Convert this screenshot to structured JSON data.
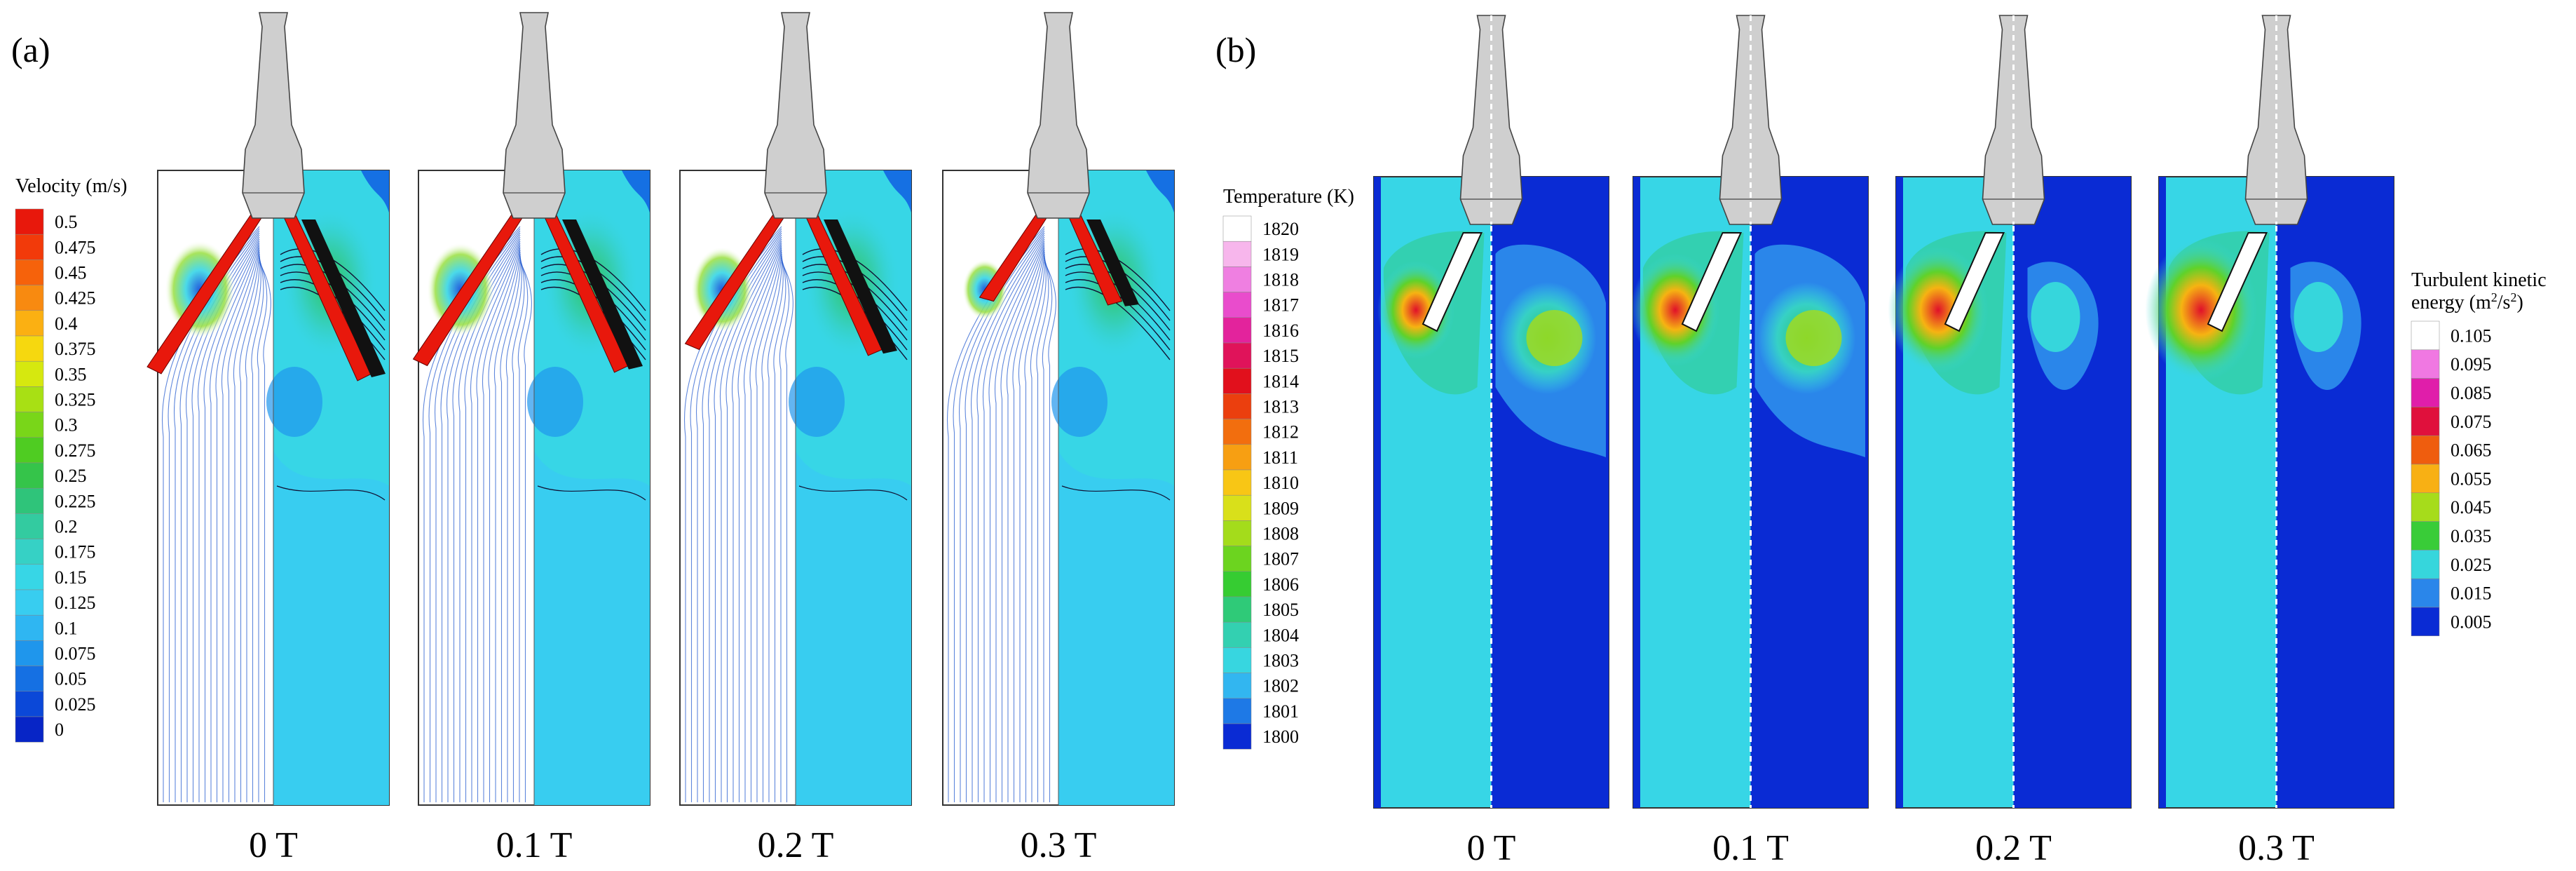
{
  "panels": [
    {
      "label": "(a)",
      "legend_title": "Velocity (m/s)",
      "legend_ticks": [
        "0.5",
        "0.475",
        "0.45",
        "0.425",
        "0.4",
        "0.375",
        "0.35",
        "0.325",
        "0.3",
        "0.275",
        "0.25",
        "0.225",
        "0.2",
        "0.175",
        "0.15",
        "0.125",
        "0.1",
        "0.075",
        "0.05",
        "0.025",
        "0"
      ],
      "legend_colors": [
        "#e8180c",
        "#f23a0a",
        "#f6620b",
        "#f88a10",
        "#fbb012",
        "#f6d80f",
        "#d6e80f",
        "#a8e014",
        "#79d619",
        "#4fcc22",
        "#35c44a",
        "#2fc47a",
        "#33cba0",
        "#36d1c5",
        "#37d6e6",
        "#38cdf0",
        "#2fb6f2",
        "#1f96ec",
        "#1570e3",
        "#0b48d8",
        "#0725c6"
      ],
      "cases": [
        "0 T",
        "0.1 T",
        "0.2 T",
        "0.3 T"
      ]
    },
    {
      "label": "(b)",
      "legend_title": "Temperature (K)",
      "legend_ticks": [
        "1820",
        "1819",
        "1818",
        "1817",
        "1816",
        "1815",
        "1814",
        "1813",
        "1812",
        "1811",
        "1810",
        "1809",
        "1808",
        "1807",
        "1806",
        "1805",
        "1804",
        "1803",
        "1802",
        "1801",
        "1800"
      ],
      "legend_colors": [
        "#ffffff",
        "#f7b6ec",
        "#ef7fe1",
        "#e94ccc",
        "#e3239c",
        "#e0135a",
        "#e1101c",
        "#eb3f0e",
        "#f26e0e",
        "#f79f12",
        "#f8c615",
        "#d9e01a",
        "#a4dc1b",
        "#6cd41f",
        "#36cc32",
        "#2fca78",
        "#33d0b1",
        "#37d6e0",
        "#32b6f0",
        "#1e79e6",
        "#0a2bd4"
      ],
      "cases": [
        "0 T",
        "0.1 T",
        "0.2 T",
        "0.3 T"
      ]
    }
  ],
  "tke_legend": {
    "title_line1": "Turbulent kinetic",
    "title_line2_text": "energy (m",
    "sup1": "2",
    "mid": "/s",
    "sup2": "2",
    "close": ")",
    "ticks": [
      "0.105",
      "0.095",
      "0.085",
      "0.075",
      "0.065",
      "0.055",
      "0.045",
      "0.035",
      "0.025",
      "0.015",
      "0.005"
    ],
    "colors": [
      "#ffffff",
      "#f078e2",
      "#e01eaa",
      "#e0103c",
      "#ef5d0e",
      "#f8b014",
      "#a6dc1b",
      "#39cc38",
      "#36d6dc",
      "#2a86ea",
      "#0a2bd4"
    ]
  }
}
